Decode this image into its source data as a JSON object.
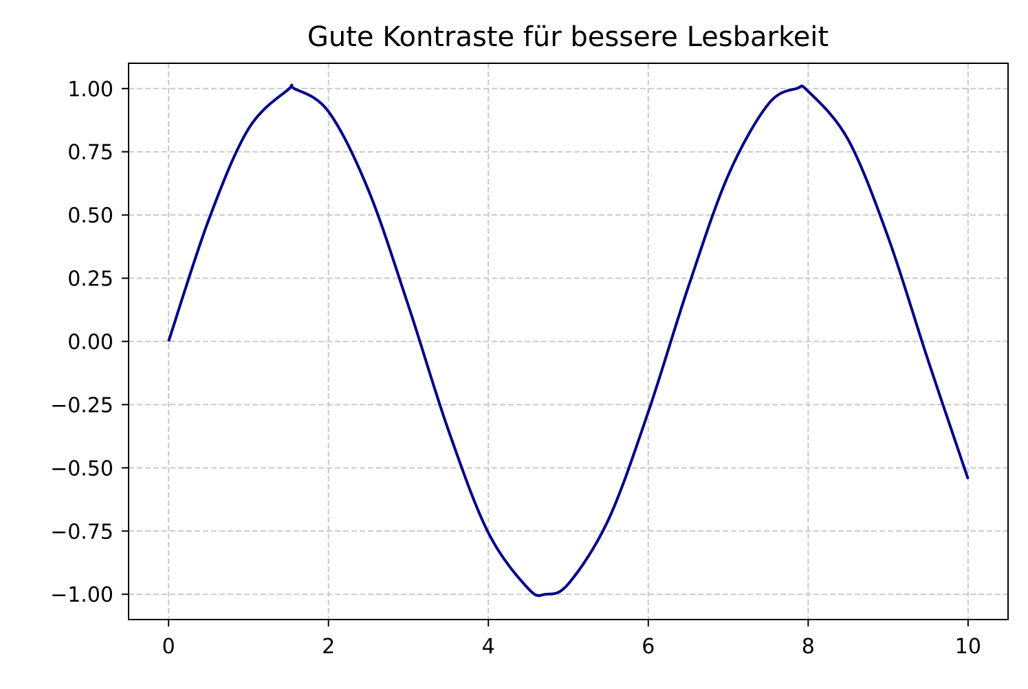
{
  "chart_data": {
    "type": "line",
    "title": "Gute Kontraste für bessere Lesbarkeit",
    "xlabel": "",
    "ylabel": "",
    "xlim": [
      -0.5,
      10.5
    ],
    "ylim": [
      -1.1,
      1.1
    ],
    "x_ticks": [
      0,
      2,
      4,
      6,
      8,
      10
    ],
    "x_tick_labels": [
      "0",
      "2",
      "4",
      "6",
      "8",
      "10"
    ],
    "y_ticks": [
      1.0,
      0.75,
      0.5,
      0.25,
      0.0,
      -0.25,
      -0.5,
      -0.75,
      -1.0
    ],
    "y_tick_labels": [
      "1.00",
      "0.75",
      "0.50",
      "0.25",
      "0.00",
      "−0.25",
      "−0.50",
      "−0.75",
      "−1.00"
    ],
    "grid": true,
    "series": [
      {
        "color": "#00008b",
        "x": [
          0,
          0.5,
          1,
          1.5,
          1.5708,
          2,
          2.5,
          3,
          3.5,
          4,
          4.5,
          4.7124,
          5,
          5.5,
          6,
          6.5,
          7,
          7.5,
          7.854,
          8,
          8.5,
          9,
          9.5,
          10
        ],
        "y": [
          0.0,
          0.479,
          0.841,
          0.997,
          1.0,
          0.909,
          0.598,
          0.141,
          -0.351,
          -0.757,
          -0.978,
          -1.0,
          -0.959,
          -0.706,
          -0.279,
          0.215,
          0.657,
          0.938,
          1.0,
          0.989,
          0.798,
          0.412,
          -0.075,
          -0.544
        ]
      }
    ]
  }
}
